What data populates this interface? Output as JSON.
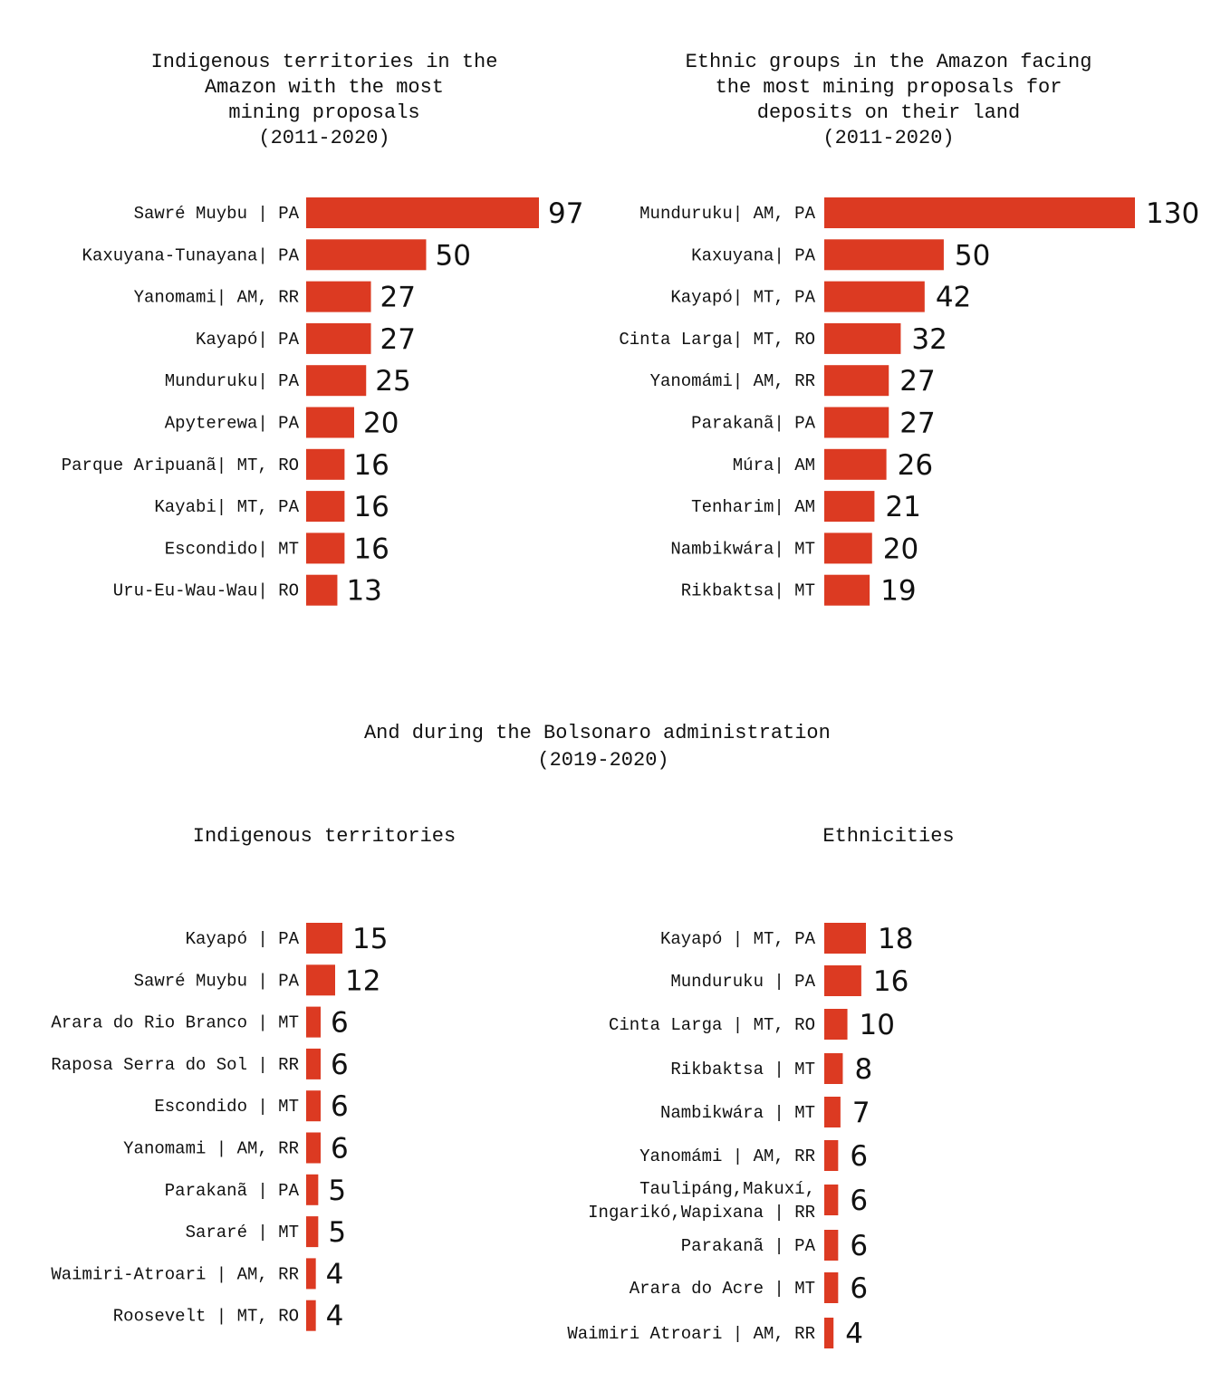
{
  "accent_color": "#dc3a22",
  "section_heading": [
    "And during the Bolsonaro administration",
    "(2019-2020)"
  ],
  "chart_data": [
    {
      "type": "bar",
      "orientation": "horizontal",
      "title": [
        "Indigenous territories in the",
        "Amazon with the most",
        "mining proposals",
        "(2011-2020)"
      ],
      "categories": [
        "Sawré Muybu | PA",
        "Kaxuyana-Tunayana| PA",
        "Yanomami| AM, RR",
        "Kayapó| PA",
        "Munduruku| PA",
        "Apyterewa| PA",
        "Parque Aripuanã| MT, RO",
        "Kayabi| MT, PA",
        "Escondido| MT",
        "Uru-Eu-Wau-Wau| RO"
      ],
      "values": [
        97,
        50,
        27,
        27,
        25,
        20,
        16,
        16,
        16,
        13
      ],
      "data_labels": true,
      "grid": false
    },
    {
      "type": "bar",
      "orientation": "horizontal",
      "title": [
        "Ethnic groups in the Amazon facing",
        "the most mining proposals for",
        "deposits on their land",
        "(2011-2020)"
      ],
      "categories": [
        "Munduruku| AM, PA",
        "Kaxuyana| PA",
        "Kayapó| MT, PA",
        "Cinta Larga| MT, RO",
        "Yanomámi| AM, RR",
        "Parakanã| PA",
        "Múra| AM",
        "Tenharim| AM",
        "Nambikwára| MT",
        "Rikbaktsa| MT"
      ],
      "values": [
        130,
        50,
        42,
        32,
        27,
        27,
        26,
        21,
        20,
        19
      ],
      "data_labels": true,
      "grid": false
    },
    {
      "type": "bar",
      "orientation": "horizontal",
      "title": [
        "Indigenous territories"
      ],
      "categories": [
        "Kayapó | PA",
        "Sawré Muybu | PA",
        "Arara do Rio Branco | MT",
        "Raposa Serra do Sol | RR",
        "Escondido | MT",
        "Yanomami | AM, RR",
        "Parakanã | PA",
        "Sararé | MT",
        "Waimiri-Atroari | AM, RR",
        "Roosevelt | MT, RO"
      ],
      "values": [
        15,
        12,
        6,
        6,
        6,
        6,
        5,
        5,
        4,
        4
      ],
      "data_labels": true,
      "grid": false
    },
    {
      "type": "bar",
      "orientation": "horizontal",
      "title": [
        "Ethnicities"
      ],
      "categories": [
        "Kayapó | MT, PA",
        "Munduruku | PA",
        "Cinta Larga | MT, RO",
        "Rikbaktsa | MT",
        "Nambikwára | MT",
        "Yanomámi | AM, RR",
        "Taulipáng,Makuxí,\nIngarikó,Wapixana | RR",
        "Parakanã | PA",
        "Arara do Acre | MT",
        "Waimiri Atroari | AM, RR"
      ],
      "values": [
        18,
        16,
        10,
        8,
        7,
        6,
        6,
        6,
        6,
        4
      ],
      "data_labels": true,
      "grid": false
    }
  ]
}
